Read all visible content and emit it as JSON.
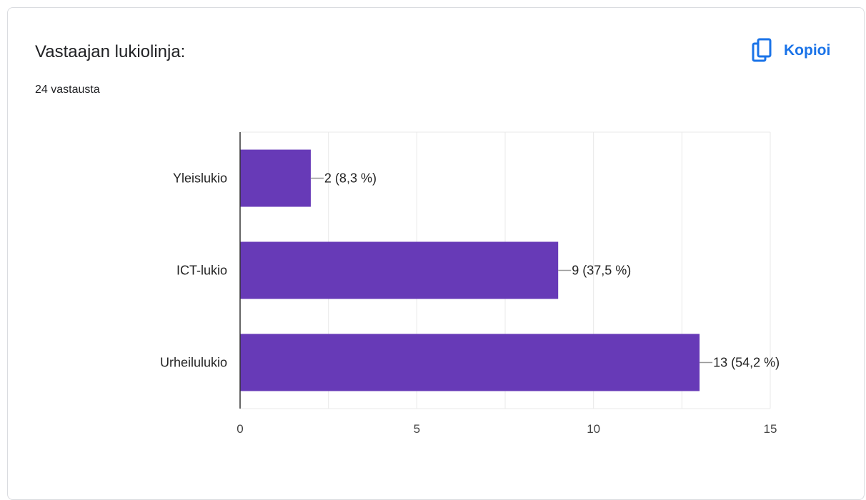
{
  "header": {
    "title": "Vastaajan lukiolinja:",
    "response_count": "24 vastausta",
    "copy_label": "Kopioi",
    "copy_icon": "copy-icon"
  },
  "colors": {
    "bar": "#673ab7",
    "accent": "#1a73e8",
    "grid": "#e8e8e8",
    "axis": "#333333"
  },
  "chart_data": {
    "type": "bar",
    "orientation": "horizontal",
    "categories": [
      "Yleislukio",
      "ICT-lukio",
      "Urheilulukio"
    ],
    "values": [
      2,
      9,
      13
    ],
    "value_labels": [
      "2 (8,3 %)",
      "9 (37,5 %)",
      "13 (54,2 %)"
    ],
    "xlim": [
      0,
      15
    ],
    "x_ticks": [
      0,
      5,
      10,
      15
    ],
    "grid": true,
    "legend": "none"
  }
}
